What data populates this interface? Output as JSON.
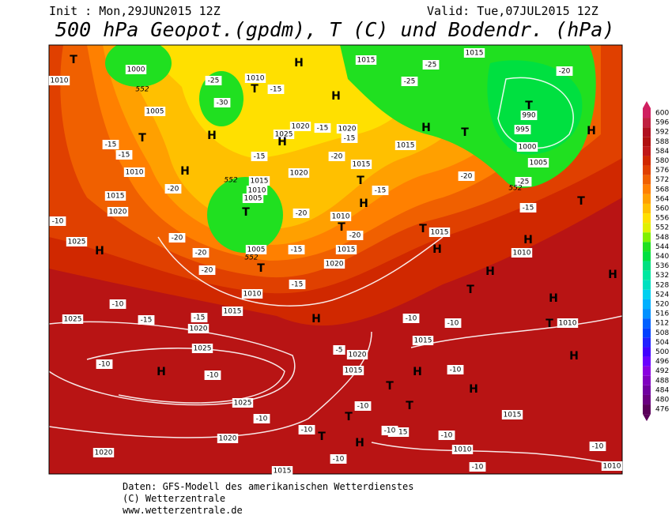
{
  "header": {
    "init": "Init : Mon,29JUN2015 12Z",
    "valid": "Valid: Tue,07JUL2015 12Z",
    "title": "500 hPa Geopot.(gpdm), T (C) und Bodendr. (hPa)"
  },
  "map": {
    "pressure_labels": [
      "1010",
      "1000",
      "1005",
      "1010",
      "1015",
      "1020",
      "1025",
      "1015",
      "1010",
      "1020",
      "1020",
      "1025",
      "1015",
      "1015",
      "1020",
      "1015",
      "1010",
      "1005",
      "1005",
      "1010",
      "1015",
      "1020",
      "1010",
      "1015",
      "1020",
      "1025",
      "1025",
      "1025",
      "1020",
      "1020",
      "1015",
      "1020",
      "1015",
      "1015",
      "1010",
      "1015",
      "1015",
      "1015",
      "1010",
      "1010",
      "1015",
      "995",
      "1000",
      "1005",
      "990",
      "1010"
    ],
    "temperature_labels": [
      "-15",
      "-15",
      "-20",
      "-20",
      "-20",
      "-20",
      "-15",
      "-15",
      "-10",
      "-10",
      "-10",
      "-10",
      "-10",
      "-10",
      "-10",
      "-10",
      "-10",
      "-10",
      "-10",
      "-5",
      "-10",
      "-10",
      "-10",
      "-10",
      "-15",
      "-15",
      "-20",
      "-20",
      "-15",
      "-20",
      "-15",
      "-25",
      "-20",
      "-25",
      "-25",
      "-20",
      "-15",
      "-15",
      "-15",
      "-15",
      "-30",
      "-25"
    ],
    "height_labels": [
      "552",
      "552",
      "552",
      "552"
    ],
    "symbols": [
      "T",
      "T",
      "H",
      "H",
      "T",
      "H",
      "H",
      "H",
      "T",
      "T",
      "H",
      "H",
      "H",
      "T",
      "H",
      "T",
      "T",
      "H",
      "T",
      "H",
      "T",
      "H",
      "T",
      "H",
      "T",
      "H",
      "H",
      "T",
      "H",
      "H",
      "H",
      "H",
      "T",
      "T",
      "H",
      "T",
      "T"
    ]
  },
  "colorbar": {
    "levels": [
      600,
      596,
      592,
      588,
      584,
      580,
      576,
      572,
      568,
      564,
      560,
      556,
      552,
      548,
      544,
      540,
      536,
      532,
      528,
      524,
      520,
      516,
      512,
      508,
      504,
      500,
      496,
      492,
      488,
      484,
      480,
      476
    ],
    "colors": [
      "#d02060",
      "#c02040",
      "#b01020",
      "#b01010",
      "#c01818",
      "#d02800",
      "#e04000",
      "#f06000",
      "#ff8000",
      "#ffa000",
      "#ffc000",
      "#ffe000",
      "#e0f000",
      "#80f000",
      "#20e020",
      "#00e040",
      "#00e080",
      "#00e8a0",
      "#00e0c0",
      "#00d0f0",
      "#00b0ff",
      "#0090ff",
      "#0060ff",
      "#0040ff",
      "#2020ff",
      "#4000ff",
      "#6a00ff",
      "#8a00e0",
      "#8000c0",
      "#7000a0",
      "#6a0080",
      "#5a005a"
    ]
  },
  "footer": {
    "lines": [
      "Daten: GFS-Modell des amerikanischen Wetterdienstes",
      "(C) Wetterzentrale",
      "www.wetterzentrale.de"
    ]
  }
}
